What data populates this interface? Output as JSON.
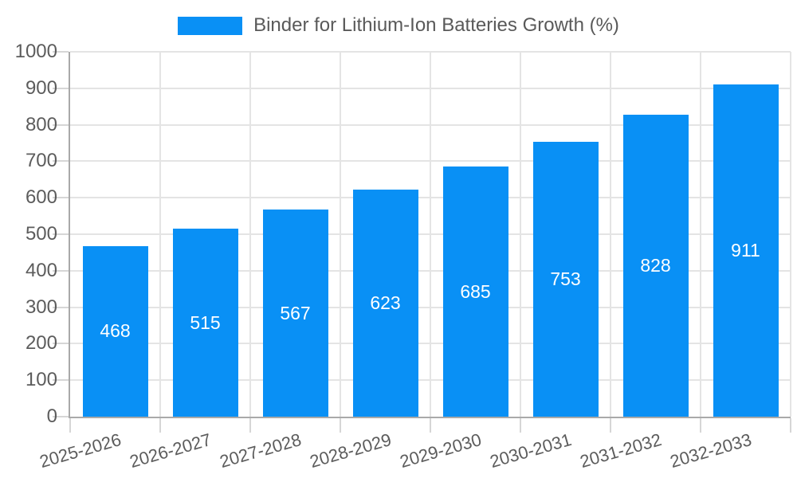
{
  "legend": {
    "label": "Binder for Lithium-Ion Batteries Growth (%)"
  },
  "chart_data": {
    "type": "bar",
    "title": "Binder for Lithium-Ion Batteries Growth (%)",
    "categories": [
      "2025-2026",
      "2026-2027",
      "2027-2028",
      "2028-2029",
      "2029-2030",
      "2030-2031",
      "2031-2032",
      "2032-2033"
    ],
    "values": [
      468,
      515,
      567,
      623,
      685,
      753,
      828,
      911
    ],
    "xlabel": "",
    "ylabel": "",
    "ylim": [
      0,
      1000
    ],
    "ytick_interval": 100,
    "ytick_labels": [
      "0",
      "100",
      "200",
      "300",
      "400",
      "500",
      "600",
      "700",
      "800",
      "900",
      "1000"
    ],
    "grid": true,
    "legend_position": "top-center",
    "value_labels": "inside-center",
    "x_tick_label_rotation_deg": -16
  },
  "colors": {
    "bar_fill": "#0990f5",
    "value_label_text": "#ffffff",
    "axis_label_text": "#5c5c5c",
    "legend_text": "#595959",
    "gridline": "#e4e4e4",
    "axis_line": "#a9a9a9",
    "tick": "#d6d6d6",
    "background": "#ffffff"
  }
}
